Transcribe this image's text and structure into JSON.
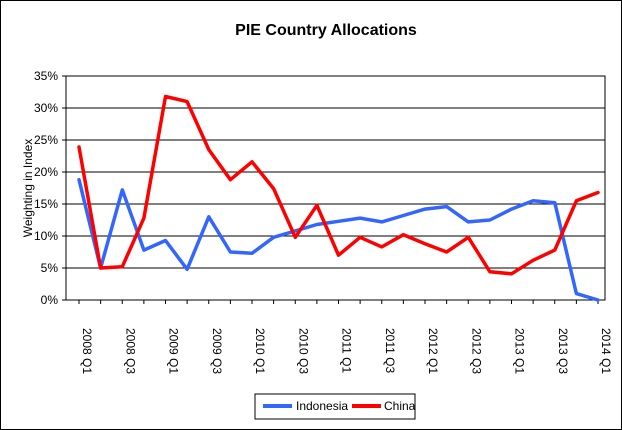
{
  "chart_data": {
    "type": "line",
    "title": "PIE Country Allocations",
    "xlabel": "",
    "ylabel": "Weighting in Index",
    "ylim": [
      0,
      35
    ],
    "yticks": [
      "0%",
      "5%",
      "10%",
      "15%",
      "20%",
      "25%",
      "30%",
      "35%"
    ],
    "x_tick_labels": [
      "2008 Q1",
      "2008 Q3",
      "2009 Q1",
      "2009 Q3",
      "2010 Q1",
      "2010 Q3",
      "2011 Q1",
      "2011 Q3",
      "2012 Q1",
      "2012 Q3",
      "2013 Q1",
      "2013 Q3",
      "2014 Q1"
    ],
    "point_count": 25,
    "grid": "horizontal",
    "legend": "bottom-center",
    "series": [
      {
        "name": "Indonesia",
        "color": "#3366ff",
        "values": [
          18.8,
          5.0,
          17.2,
          7.8,
          9.3,
          4.8,
          13.0,
          7.5,
          7.3,
          9.8,
          10.8,
          11.8,
          12.3,
          12.8,
          12.2,
          13.2,
          14.2,
          14.6,
          12.2,
          12.5,
          14.2,
          15.5,
          15.2,
          1.0,
          0.0
        ]
      },
      {
        "name": "China",
        "color": "#ff0000",
        "values": [
          23.9,
          5.0,
          5.2,
          12.8,
          31.8,
          31.0,
          23.5,
          18.8,
          21.6,
          17.4,
          9.8,
          14.8,
          7.0,
          9.8,
          8.3,
          10.2,
          8.8,
          7.5,
          9.8,
          4.4,
          4.1,
          6.2,
          7.8,
          15.5,
          16.8
        ]
      }
    ]
  }
}
